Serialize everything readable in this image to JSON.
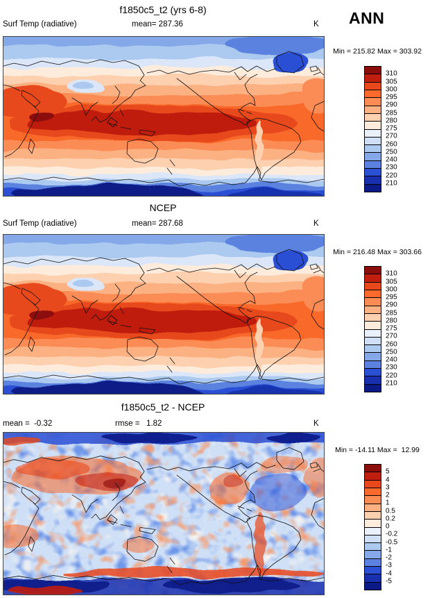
{
  "season": "ANN",
  "panels": [
    {
      "title": "f1850c5_t2 (yrs 6-8)",
      "left_label": "Surf Temp (radiative)",
      "center_label": "mean= 287.36",
      "units": "K",
      "minmax": "Min = 215.82 Max = 303.92"
    },
    {
      "title": "NCEP",
      "left_label": "Surf Temp (radiative)",
      "center_label": "mean= 287.68",
      "units": "K",
      "minmax": "Min = 216.48 Max = 303.66"
    },
    {
      "title": "f1850c5_t2 - NCEP",
      "left_label": "mean =  -0.32",
      "center_label": "rmse =   1.82",
      "units": "K",
      "minmax": "Min = -14.11 Max =  12.99"
    }
  ],
  "colorbars": [
    {
      "levels": [
        "310",
        "305",
        "300",
        "295",
        "290",
        "285",
        "280",
        "275",
        "270",
        "260",
        "250",
        "240",
        "230",
        "220",
        "210"
      ],
      "colors": [
        "#8b0d0c",
        "#c01e0f",
        "#e8481c",
        "#f96a2c",
        "#fb8c54",
        "#fcb183",
        "#fdd0b0",
        "#fdebdc",
        "#eaf1fb",
        "#cfdff6",
        "#accaf0",
        "#84a8e8",
        "#5a82de",
        "#2b50d4",
        "#1830ae",
        "#0c1a87"
      ]
    },
    {
      "levels": [
        "310",
        "305",
        "300",
        "295",
        "290",
        "285",
        "280",
        "275",
        "270",
        "260",
        "250",
        "240",
        "230",
        "220",
        "210"
      ],
      "colors": [
        "#8b0d0c",
        "#c01e0f",
        "#e8481c",
        "#f96a2c",
        "#fb8c54",
        "#fcb183",
        "#fdd0b0",
        "#fdebdc",
        "#eaf1fb",
        "#cfdff6",
        "#accaf0",
        "#84a8e8",
        "#5a82de",
        "#2b50d4",
        "#1830ae",
        "#0c1a87"
      ]
    },
    {
      "levels": [
        "5",
        "4",
        "3",
        "2",
        "1",
        "0.5",
        "0.2",
        "0",
        "-0.2",
        "-0.5",
        "-1",
        "-2",
        "-3",
        "-4",
        "-5"
      ],
      "colors": [
        "#8b0d0c",
        "#c01e0f",
        "#e8481c",
        "#f96a2c",
        "#fb8c54",
        "#fcb183",
        "#fdd0b0",
        "#fdebdc",
        "#eaf1fb",
        "#cfdff6",
        "#accaf0",
        "#84a8e8",
        "#5a82de",
        "#2b50d4",
        "#1830ae",
        "#0c1a87"
      ]
    }
  ],
  "chart_data": [
    {
      "type": "heatmap",
      "subtype": "global contour map (equirectangular, Pacific-centered)",
      "title": "f1850c5_t2 (yrs 6-8)",
      "variable": "Surf Temp (radiative)",
      "season": "ANN",
      "units": "K",
      "stats": {
        "mean": 287.36,
        "min": 215.82,
        "max": 303.92
      },
      "colorbar_levels": [
        310,
        305,
        300,
        295,
        290,
        285,
        280,
        275,
        270,
        260,
        250,
        240,
        230,
        220,
        210
      ],
      "colorbar_colors": [
        "#8b0d0c",
        "#c01e0f",
        "#e8481c",
        "#f96a2c",
        "#fb8c54",
        "#fcb183",
        "#fdd0b0",
        "#fdebdc",
        "#eaf1fb",
        "#cfdff6",
        "#accaf0",
        "#84a8e8",
        "#5a82de",
        "#2b50d4",
        "#1830ae",
        "#0c1a87"
      ],
      "legend_position": "right",
      "description": "Warm (dark red ~305-310 K) across tropics, cooling poleward; blue <250 K over Arctic, Greenland, Tibet; dark blue <220 K over Antarctica."
    },
    {
      "type": "heatmap",
      "subtype": "global contour map (equirectangular, Pacific-centered)",
      "title": "NCEP",
      "variable": "Surf Temp (radiative)",
      "season": "ANN",
      "units": "K",
      "stats": {
        "mean": 287.68,
        "min": 216.48,
        "max": 303.66
      },
      "colorbar_levels": [
        310,
        305,
        300,
        295,
        290,
        285,
        280,
        275,
        270,
        260,
        250,
        240,
        230,
        220,
        210
      ],
      "colorbar_colors": [
        "#8b0d0c",
        "#c01e0f",
        "#e8481c",
        "#f96a2c",
        "#fb8c54",
        "#fcb183",
        "#fdd0b0",
        "#fdebdc",
        "#eaf1fb",
        "#cfdff6",
        "#accaf0",
        "#84a8e8",
        "#5a82de",
        "#2b50d4",
        "#1830ae",
        "#0c1a87"
      ],
      "legend_position": "right",
      "description": "NCEP reanalysis annual-mean surface temperature, same latitudinal structure as model panel."
    },
    {
      "type": "heatmap",
      "subtype": "global difference map (model minus reanalysis)",
      "title": "f1850c5_t2 - NCEP",
      "variable": "Surf Temp (radiative) difference",
      "season": "ANN",
      "units": "K",
      "stats": {
        "mean": -0.32,
        "rmse": 1.82,
        "min": -14.11,
        "max": 12.99
      },
      "colorbar_levels": [
        5,
        4,
        3,
        2,
        1,
        0.5,
        0.2,
        0,
        -0.2,
        -0.5,
        -1,
        -2,
        -3,
        -4,
        -5
      ],
      "colorbar_colors": [
        "#8b0d0c",
        "#c01e0f",
        "#e8481c",
        "#f96a2c",
        "#fb8c54",
        "#fcb183",
        "#fdd0b0",
        "#fdebdc",
        "#eaf1fb",
        "#cfdff6",
        "#accaf0",
        "#84a8e8",
        "#5a82de",
        "#2b50d4",
        "#1830ae",
        "#0c1a87"
      ],
      "legend_position": "right",
      "description": "Mottled red/blue bias pattern: warm biases (>3 K) over central Asia, western North America, Andes, southern Africa and Antarctic coastline; cold biases (<-3 K) over Arctic, Southern Ocean and high-latitude oceans."
    }
  ]
}
